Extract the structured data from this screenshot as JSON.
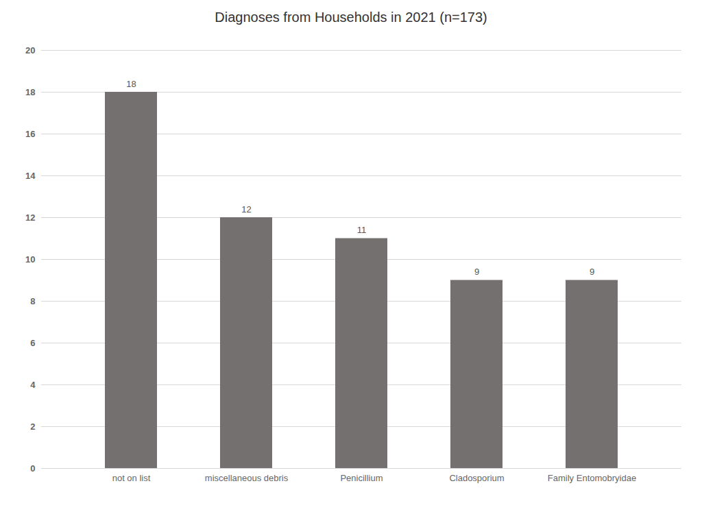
{
  "chart_data": {
    "type": "bar",
    "title": "Diagnoses from Households in 2021 (n=173)",
    "categories": [
      "not on list",
      "miscellaneous debris",
      "Penicillium",
      "Cladosporium",
      "Family Entomobryidae"
    ],
    "values": [
      18,
      12,
      11,
      9,
      9
    ],
    "color": "#757070",
    "ylim": [
      0,
      20
    ],
    "yticks": [
      0,
      2,
      4,
      6,
      8,
      10,
      12,
      14,
      16,
      18,
      20
    ],
    "grid": true,
    "data_labels": true
  }
}
